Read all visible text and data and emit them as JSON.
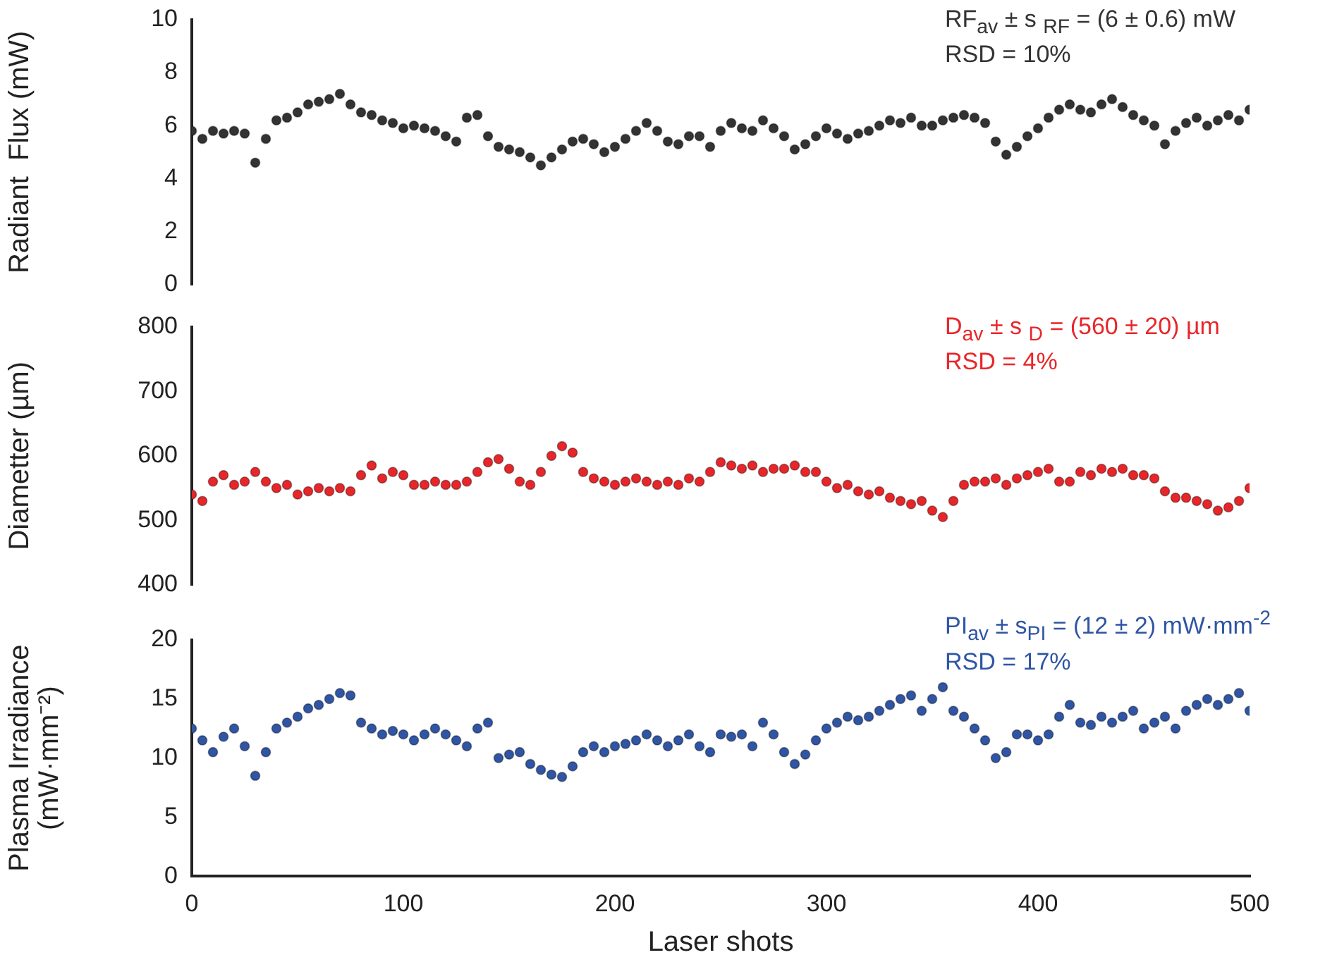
{
  "chart_data": [
    {
      "type": "scatter",
      "ylabel": "Radiant  Flux (mW)",
      "annotations": [
        "RF$_{av}$ ± s $_{RF}$ = (6 ± 0.6) mW",
        "RSD = 10%"
      ],
      "xlim": [
        0,
        500
      ],
      "ylim": [
        0,
        10
      ],
      "yticks": [
        0,
        2,
        4,
        6,
        8,
        10
      ],
      "tick_labels": "y",
      "marker": "circle",
      "x": [
        0,
        5,
        10,
        15,
        20,
        25,
        30,
        35,
        40,
        45,
        50,
        55,
        60,
        65,
        70,
        75,
        80,
        85,
        90,
        95,
        100,
        105,
        110,
        115,
        120,
        125,
        130,
        135,
        140,
        145,
        150,
        155,
        160,
        165,
        170,
        175,
        180,
        185,
        190,
        195,
        200,
        205,
        210,
        215,
        220,
        225,
        230,
        235,
        240,
        245,
        250,
        255,
        260,
        265,
        270,
        275,
        280,
        285,
        290,
        295,
        300,
        305,
        310,
        315,
        320,
        325,
        330,
        335,
        340,
        345,
        350,
        355,
        360,
        365,
        370,
        375,
        380,
        385,
        390,
        395,
        400,
        405,
        410,
        415,
        420,
        425,
        430,
        435,
        440,
        445,
        450,
        455,
        460,
        465,
        470,
        475,
        480,
        485,
        490,
        495,
        500
      ],
      "series": [
        {
          "color": "#333333",
          "values": [
            5.8,
            5.5,
            5.8,
            5.7,
            5.8,
            5.7,
            4.6,
            5.5,
            6.2,
            6.3,
            6.5,
            6.8,
            6.9,
            7.0,
            7.2,
            6.8,
            6.5,
            6.4,
            6.2,
            6.1,
            5.9,
            6.0,
            5.9,
            5.8,
            5.6,
            5.4,
            6.3,
            6.4,
            5.6,
            5.2,
            5.1,
            5.0,
            4.8,
            4.5,
            4.8,
            5.1,
            5.4,
            5.5,
            5.3,
            5.0,
            5.2,
            5.5,
            5.8,
            6.1,
            5.8,
            5.4,
            5.3,
            5.6,
            5.6,
            5.2,
            5.8,
            6.1,
            5.9,
            5.8,
            6.2,
            5.9,
            5.6,
            5.1,
            5.3,
            5.6,
            5.9,
            5.7,
            5.5,
            5.7,
            5.8,
            6.0,
            6.2,
            6.1,
            6.3,
            6.0,
            6.0,
            6.2,
            6.3,
            6.4,
            6.3,
            6.1,
            5.4,
            4.9,
            5.2,
            5.6,
            5.9,
            6.3,
            6.6,
            6.8,
            6.6,
            6.5,
            6.8,
            7.0,
            6.7,
            6.4,
            6.2,
            6.0,
            5.3,
            5.8,
            6.1,
            6.3,
            6.0,
            6.2,
            6.4,
            6.2,
            6.6
          ]
        }
      ]
    },
    {
      "type": "scatter",
      "ylabel": "Diametter (µm)",
      "annotations": [
        "D$_{av}$ ± s $_{D}$ = (560 ± 20) µm",
        "RSD = 4%"
      ],
      "xlim": [
        0,
        500
      ],
      "ylim": [
        400,
        800
      ],
      "yticks": [
        400,
        500,
        600,
        700,
        800
      ],
      "tick_labels": "y",
      "marker": "circle",
      "x": [
        0,
        5,
        10,
        15,
        20,
        25,
        30,
        35,
        40,
        45,
        50,
        55,
        60,
        65,
        70,
        75,
        80,
        85,
        90,
        95,
        100,
        105,
        110,
        115,
        120,
        125,
        130,
        135,
        140,
        145,
        150,
        155,
        160,
        165,
        170,
        175,
        180,
        185,
        190,
        195,
        200,
        205,
        210,
        215,
        220,
        225,
        230,
        235,
        240,
        245,
        250,
        255,
        260,
        265,
        270,
        275,
        280,
        285,
        290,
        295,
        300,
        305,
        310,
        315,
        320,
        325,
        330,
        335,
        340,
        345,
        350,
        355,
        360,
        365,
        370,
        375,
        380,
        385,
        390,
        395,
        400,
        405,
        410,
        415,
        420,
        425,
        430,
        435,
        440,
        445,
        450,
        455,
        460,
        465,
        470,
        475,
        480,
        485,
        490,
        495,
        500
      ],
      "series": [
        {
          "color": "#e8262a",
          "values": [
            540,
            530,
            560,
            570,
            555,
            560,
            575,
            560,
            550,
            555,
            540,
            545,
            550,
            545,
            550,
            545,
            570,
            585,
            565,
            575,
            570,
            555,
            555,
            560,
            555,
            555,
            560,
            575,
            590,
            595,
            580,
            560,
            555,
            575,
            600,
            615,
            605,
            575,
            565,
            560,
            555,
            560,
            565,
            560,
            555,
            560,
            555,
            565,
            560,
            575,
            590,
            585,
            580,
            585,
            575,
            580,
            580,
            585,
            575,
            575,
            560,
            550,
            555,
            545,
            540,
            545,
            535,
            530,
            525,
            530,
            515,
            505,
            530,
            555,
            560,
            560,
            565,
            555,
            565,
            570,
            575,
            580,
            560,
            560,
            575,
            570,
            580,
            575,
            580,
            570,
            570,
            565,
            545,
            535,
            535,
            530,
            525,
            515,
            520,
            530,
            550
          ]
        }
      ]
    },
    {
      "type": "scatter",
      "xlabel": "Laser shots",
      "ylabel": "Plasma Irradiance\n(mW·mm⁻²)",
      "annotations": [
        "PI$_{av}$ ± s$_{PI}$ = (12 ± 2) mW·mm$^{-2}$",
        "RSD = 17%"
      ],
      "xlim": [
        0,
        500
      ],
      "xticks": [
        0,
        100,
        200,
        300,
        400,
        500
      ],
      "ylim": [
        0,
        20
      ],
      "yticks": [
        0,
        5,
        10,
        15,
        20
      ],
      "marker": "circle",
      "x": [
        0,
        5,
        10,
        15,
        20,
        25,
        30,
        35,
        40,
        45,
        50,
        55,
        60,
        65,
        70,
        75,
        80,
        85,
        90,
        95,
        100,
        105,
        110,
        115,
        120,
        125,
        130,
        135,
        140,
        145,
        150,
        155,
        160,
        165,
        170,
        175,
        180,
        185,
        190,
        195,
        200,
        205,
        210,
        215,
        220,
        225,
        230,
        235,
        240,
        245,
        250,
        255,
        260,
        265,
        270,
        275,
        280,
        285,
        290,
        295,
        300,
        305,
        310,
        315,
        320,
        325,
        330,
        335,
        340,
        345,
        350,
        355,
        360,
        365,
        370,
        375,
        380,
        385,
        390,
        395,
        400,
        405,
        410,
        415,
        420,
        425,
        430,
        435,
        440,
        445,
        450,
        455,
        460,
        465,
        470,
        475,
        480,
        485,
        490,
        495,
        500
      ],
      "series": [
        {
          "color": "#2f55a4",
          "values": [
            12.5,
            11.5,
            10.5,
            11.8,
            12.5,
            11,
            8.5,
            10.5,
            12.5,
            13,
            13.5,
            14.2,
            14.5,
            15,
            15.5,
            15.3,
            13,
            12.5,
            12,
            12.3,
            12,
            11.5,
            12,
            12.5,
            12,
            11.5,
            11,
            12.5,
            13,
            10,
            10.3,
            10.5,
            9.5,
            9,
            8.6,
            8.4,
            9.3,
            10.5,
            11,
            10.5,
            11,
            11.2,
            11.5,
            12,
            11.5,
            11,
            11.5,
            12,
            11,
            10.5,
            12,
            11.8,
            12,
            11,
            13,
            12,
            10.5,
            9.5,
            10.3,
            11.5,
            12.5,
            13,
            13.5,
            13.2,
            13.5,
            14,
            14.5,
            15,
            15.3,
            14,
            15,
            16,
            14,
            13.5,
            12.5,
            11.5,
            10,
            10.5,
            12,
            12,
            11.5,
            12,
            13.5,
            14.5,
            13,
            12.8,
            13.5,
            13,
            13.5,
            14,
            12.5,
            13,
            13.5,
            12.5,
            14,
            14.5,
            15,
            14.5,
            15,
            15.5,
            14
          ]
        }
      ]
    }
  ]
}
